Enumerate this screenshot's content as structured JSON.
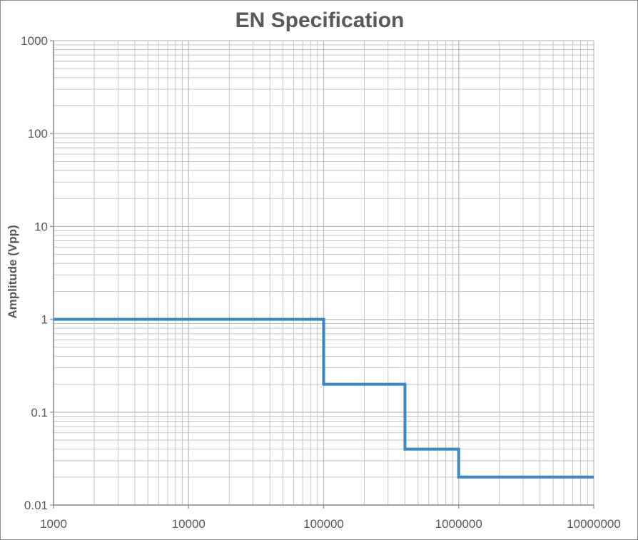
{
  "chart_data": {
    "type": "line",
    "title": "EN Specification",
    "xlabel": "",
    "ylabel": "Amplitude (Vpp)",
    "x_scale": "log",
    "y_scale": "log",
    "xlim": [
      1000,
      10000000
    ],
    "ylim": [
      0.01,
      1000
    ],
    "x_ticks": [
      "1000",
      "10000",
      "100000",
      "1000000",
      "10000000"
    ],
    "y_ticks": [
      "0.01",
      "0.1",
      "1",
      "10",
      "100",
      "1000"
    ],
    "grid": true,
    "legend": "none",
    "series": [
      {
        "color": "#3b87c5",
        "points": [
          {
            "x": 1000,
            "y": 1
          },
          {
            "x": 100000,
            "y": 1
          },
          {
            "x": 100000,
            "y": 0.2
          },
          {
            "x": 400000,
            "y": 0.2
          },
          {
            "x": 400000,
            "y": 0.04
          },
          {
            "x": 1000000,
            "y": 0.04
          },
          {
            "x": 1000000,
            "y": 0.02
          },
          {
            "x": 10000000,
            "y": 0.02
          }
        ]
      }
    ],
    "colors": {
      "grid": "#bfbfbf",
      "axis": "#8c8c8c",
      "text": "#595959",
      "border": "#8c8c8c"
    }
  }
}
